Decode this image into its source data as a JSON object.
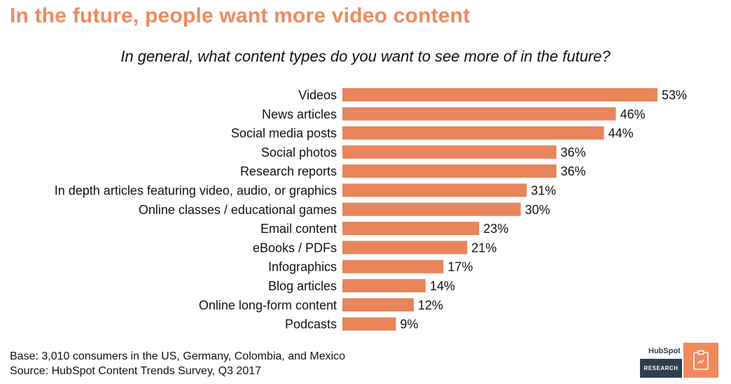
{
  "headline": "In the future, people want more video content",
  "chart_data": {
    "type": "bar",
    "orientation": "horizontal",
    "title": "In general, what content types do you want to see more of in the future?",
    "categories": [
      "Videos",
      "News articles",
      "Social media posts",
      "Social photos",
      "Research reports",
      "In depth articles featuring video, audio, or graphics",
      "Online classes / educational games",
      "Email content",
      "eBooks / PDFs",
      "Infographics",
      "Blog articles",
      "Online long-form content",
      "Podcasts"
    ],
    "values": [
      53,
      46,
      44,
      36,
      36,
      31,
      30,
      23,
      21,
      17,
      14,
      12,
      9
    ],
    "value_suffix": "%",
    "xlim": [
      0,
      53
    ],
    "grid": false,
    "legend": "none",
    "bar_color": "#e8855a"
  },
  "footnotes": {
    "base": "Base: 3,010 consumers in the US, Germany, Colombia, and Mexico",
    "source": "Source: HubSpot Content Trends Survey, Q3 2017"
  },
  "logo": {
    "word": "HubSpot",
    "label": "RESEARCH",
    "icon": "clipboard-icon",
    "accent": "#f08a5d",
    "dark": "#2d3e50"
  }
}
